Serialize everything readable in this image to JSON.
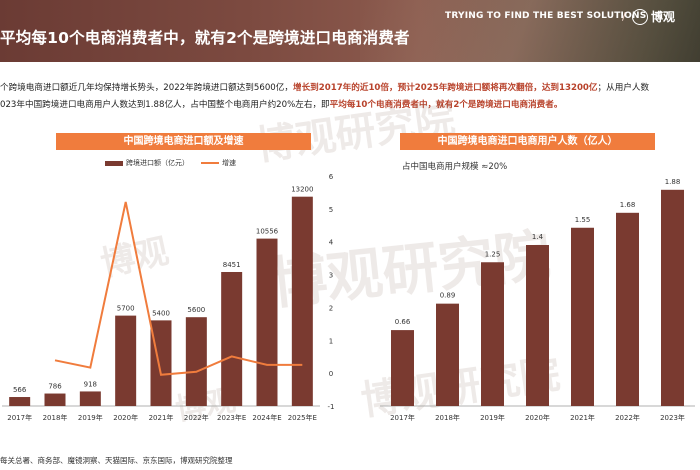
{
  "header": {
    "title": "平均每10个电商消费者中，就有2个是跨境进口电商消费者",
    "tagline": "TRYING TO FIND THE BEST SOLUTIONS",
    "separator": "/",
    "logo_text": "博观"
  },
  "paragraph": {
    "line1_a": "个跨境电商进口额近几年均保持增长势头，2022年跨境进口额达到5600亿，",
    "line1_b": "增长到2017年的近10倍，预计2025年跨境进口额将再次翻倍，达到13200亿",
    "line1_c": "；从用户人数",
    "line2_a": "023年中国跨境进口电商用户人数达到1.88亿人，占中国整个电商用户约20%左右，即",
    "line2_b": "平均每10个电商消费者中，就有2个是跨境进口电商消费者。"
  },
  "watermarks": [
    "博观研究院",
    "博观",
    "博观研究院",
    "博观研究院",
    "博观"
  ],
  "source": "每关总署、商务部、魔镜洞察、天猫国际、京东国际，博观研究院整理",
  "chart_data": [
    {
      "type": "bar",
      "title": "中国跨境电商进口额及增速",
      "categories": [
        "2017年",
        "2018年",
        "2019年",
        "2020年",
        "2021年",
        "2022年",
        "2023年E",
        "2024年E",
        "2025年E"
      ],
      "series": [
        {
          "name": "跨境进口额（亿元）",
          "values": [
            566,
            786,
            918,
            5700,
            5400,
            5600,
            8451,
            10556,
            13200
          ],
          "color": "#7a3a30"
        },
        {
          "name": "增速",
          "type": "line",
          "values": [
            null,
            0.39,
            0.17,
            5.21,
            -0.05,
            0.04,
            0.51,
            0.25,
            0.25
          ],
          "color": "#f07c3d"
        }
      ],
      "ylim": [
        0,
        14000
      ],
      "y2lim": [
        -1,
        6
      ],
      "y2ticks": [
        "6",
        "5",
        "4",
        "3",
        "2",
        "1",
        "0",
        "-1"
      ],
      "grid": false,
      "legend": "top"
    },
    {
      "type": "bar",
      "title": "中国跨境电商进口电商用户人数（亿人）",
      "subtitle": "占中国电商用户规模 ≈20%",
      "categories": [
        "2017年",
        "2018年",
        "2019年",
        "2020年",
        "2021年",
        "2022年",
        "2023年"
      ],
      "values": [
        0.66,
        0.89,
        1.25,
        1.4,
        1.55,
        1.68,
        1.88
      ],
      "ylim": [
        0,
        2.0
      ],
      "color": "#7a3a30",
      "grid": false
    }
  ]
}
